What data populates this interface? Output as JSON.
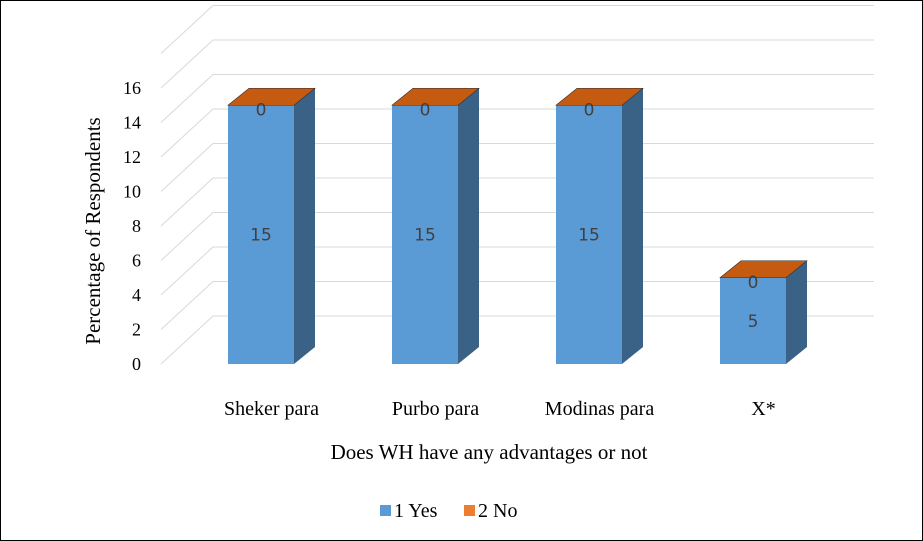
{
  "chart_data": {
    "type": "bar",
    "stacked": true,
    "three_d": true,
    "categories": [
      "Sheker para",
      "Purbo para",
      "Modinas para",
      "X*"
    ],
    "series": [
      {
        "name": "1 Yes",
        "values": [
          15,
          15,
          15,
          5
        ],
        "color": "#5b9bd5"
      },
      {
        "name": "2 No",
        "values": [
          0,
          0,
          0,
          0
        ],
        "color": "#ed7d31"
      }
    ],
    "xlabel": "Does WH have any advantages or not",
    "ylabel": "Percentage of Respondents",
    "ylim": [
      0,
      16
    ],
    "yticks": [
      0,
      2,
      4,
      6,
      8,
      10,
      12,
      14,
      16
    ],
    "grid": true,
    "legend": "bottom"
  }
}
